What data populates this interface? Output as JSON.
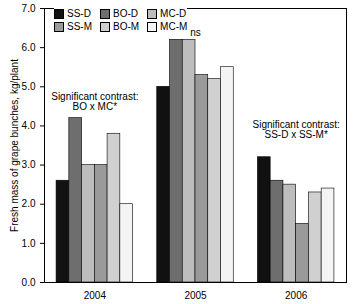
{
  "chart_data": {
    "type": "bar",
    "y_label": "Fresh mass of grape bunches, kg/plant",
    "categories": [
      "2004",
      "2005",
      "2006"
    ],
    "series": [
      {
        "name": "SS-D",
        "color": "#111111",
        "values": [
          2.6,
          5.0,
          3.2
        ]
      },
      {
        "name": "BO-D",
        "color": "#6e6e6e",
        "values": [
          4.2,
          6.2,
          2.6
        ]
      },
      {
        "name": "MC-D",
        "color": "#bdbdbd",
        "values": [
          3.0,
          6.2,
          2.5
        ]
      },
      {
        "name": "SS-M",
        "color": "#9a9a9a",
        "values": [
          3.0,
          5.3,
          1.5
        ]
      },
      {
        "name": "BO-M",
        "color": "#d0d0d0",
        "values": [
          3.8,
          5.2,
          2.3
        ]
      },
      {
        "name": "MC-M",
        "color": "#f4f4f4",
        "values": [
          2.0,
          5.5,
          2.4
        ]
      }
    ],
    "annotations": [
      {
        "category": "2004",
        "y": 4.4,
        "text": "Significant contrast:\nBO x MC*"
      },
      {
        "category": "2005",
        "y": 6.3,
        "text": "ns"
      },
      {
        "category": "2006",
        "y": 3.7,
        "text": "Significant contrast:\nSS-D x SS-M*"
      }
    ],
    "ylim": [
      0,
      7
    ],
    "yticks": [
      0,
      1,
      2,
      3,
      4,
      5,
      6,
      7
    ],
    "legend": "top",
    "grid": false
  }
}
